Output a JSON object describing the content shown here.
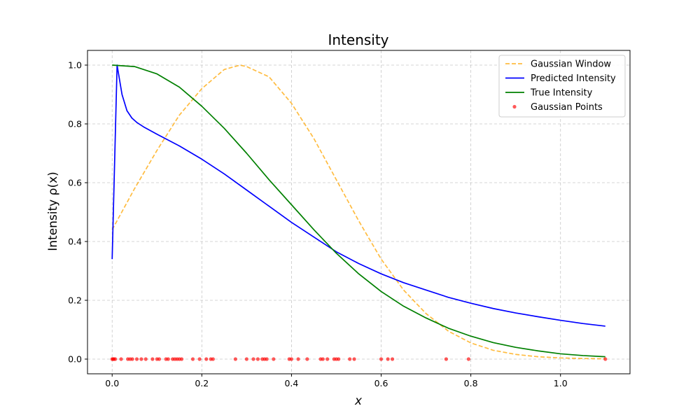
{
  "chart_data": {
    "type": "line",
    "title": "Intensity",
    "xlabel": "x",
    "ylabel": "Intensity ρ(x)",
    "xlim": [
      -0.055,
      1.155
    ],
    "ylim": [
      -0.05,
      1.05
    ],
    "xticks": [
      0.0,
      0.2,
      0.4,
      0.6,
      0.8,
      1.0
    ],
    "xtick_labels": [
      "0.0",
      "0.2",
      "0.4",
      "0.6",
      "0.8",
      "1.0"
    ],
    "yticks": [
      0.0,
      0.2,
      0.4,
      0.6,
      0.8,
      1.0
    ],
    "ytick_labels": [
      "0.0",
      "0.2",
      "0.4",
      "0.6",
      "0.8",
      "1.0"
    ],
    "grid": true,
    "legend_position": "top-right",
    "series": [
      {
        "name": "Gaussian Window",
        "kind": "line",
        "style": "dashed",
        "color": "#ffa500",
        "x": [
          0.0,
          0.05,
          0.1,
          0.15,
          0.2,
          0.25,
          0.285,
          0.3,
          0.35,
          0.4,
          0.45,
          0.5,
          0.55,
          0.6,
          0.65,
          0.7,
          0.75,
          0.8,
          0.85,
          0.9,
          0.95,
          1.0,
          1.05,
          1.1
        ],
        "y": [
          0.44,
          0.58,
          0.71,
          0.83,
          0.92,
          0.985,
          1.0,
          0.995,
          0.96,
          0.87,
          0.75,
          0.61,
          0.47,
          0.34,
          0.235,
          0.155,
          0.095,
          0.055,
          0.03,
          0.016,
          0.008,
          0.004,
          0.002,
          0.001
        ]
      },
      {
        "name": "Predicted Intensity",
        "kind": "line",
        "style": "solid",
        "color": "#0000ff",
        "x": [
          0.0,
          0.011,
          0.022,
          0.033,
          0.044,
          0.055,
          0.07,
          0.1,
          0.15,
          0.2,
          0.25,
          0.3,
          0.35,
          0.4,
          0.45,
          0.5,
          0.55,
          0.6,
          0.65,
          0.7,
          0.75,
          0.8,
          0.85,
          0.9,
          0.95,
          1.0,
          1.05,
          1.1
        ],
        "y": [
          0.34,
          1.0,
          0.9,
          0.845,
          0.82,
          0.805,
          0.79,
          0.765,
          0.725,
          0.68,
          0.63,
          0.575,
          0.52,
          0.465,
          0.415,
          0.365,
          0.325,
          0.29,
          0.26,
          0.235,
          0.21,
          0.19,
          0.172,
          0.157,
          0.144,
          0.132,
          0.121,
          0.112
        ]
      },
      {
        "name": "True Intensity",
        "kind": "line",
        "style": "solid",
        "color": "#008000",
        "x": [
          0.0,
          0.05,
          0.1,
          0.15,
          0.2,
          0.25,
          0.3,
          0.35,
          0.4,
          0.45,
          0.5,
          0.55,
          0.6,
          0.65,
          0.7,
          0.75,
          0.8,
          0.85,
          0.9,
          0.95,
          1.0,
          1.05,
          1.1
        ],
        "y": [
          1.0,
          0.995,
          0.97,
          0.925,
          0.86,
          0.785,
          0.7,
          0.61,
          0.525,
          0.44,
          0.36,
          0.29,
          0.23,
          0.18,
          0.14,
          0.105,
          0.078,
          0.056,
          0.04,
          0.028,
          0.018,
          0.012,
          0.008
        ]
      },
      {
        "name": "Gaussian Points",
        "kind": "scatter",
        "color": "#ff0000",
        "x": [
          0.0,
          0.002,
          0.004,
          0.007,
          0.02,
          0.035,
          0.04,
          0.045,
          0.055,
          0.065,
          0.075,
          0.09,
          0.1,
          0.105,
          0.12,
          0.125,
          0.135,
          0.14,
          0.145,
          0.15,
          0.155,
          0.18,
          0.195,
          0.21,
          0.22,
          0.225,
          0.275,
          0.3,
          0.315,
          0.325,
          0.335,
          0.34,
          0.345,
          0.36,
          0.395,
          0.4,
          0.415,
          0.435,
          0.465,
          0.47,
          0.48,
          0.495,
          0.5,
          0.505,
          0.53,
          0.54,
          0.6,
          0.615,
          0.625,
          0.745,
          0.795,
          1.1
        ],
        "y": [
          0,
          0,
          0,
          0,
          0,
          0,
          0,
          0,
          0,
          0,
          0,
          0,
          0,
          0,
          0,
          0,
          0,
          0,
          0,
          0,
          0,
          0,
          0,
          0,
          0,
          0,
          0,
          0,
          0,
          0,
          0,
          0,
          0,
          0,
          0,
          0,
          0,
          0,
          0,
          0,
          0,
          0,
          0,
          0,
          0,
          0,
          0,
          0,
          0,
          0,
          0,
          0
        ]
      }
    ]
  }
}
